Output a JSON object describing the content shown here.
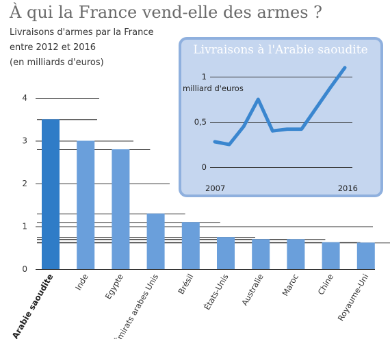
{
  "title": "À qui la France vend-elle des armes ?",
  "subtitle_lines": [
    "Livraisons d'armes par la France",
    "entre 2012 et 2016",
    "(en milliards d'euros)"
  ],
  "colors": {
    "highlight_bar": "#2f7cc7",
    "bar": "#6a9fdb",
    "inset_bg": "#c5d6ef",
    "inset_border": "#8fb0de",
    "inset_line": "#3a86cf"
  },
  "chart_data": [
    {
      "type": "bar",
      "categories": [
        "Arabie saoudite",
        "Inde",
        "Egypte",
        "Émirats arabes Unis",
        "Brésil",
        "États-Unis",
        "Australie",
        "Maroc",
        "Chine",
        "Royaume-Uni"
      ],
      "values": [
        3.5,
        3.0,
        2.8,
        1.3,
        1.1,
        0.75,
        0.7,
        0.7,
        0.63,
        0.62
      ],
      "highlight": "Arabie saoudite",
      "y_ticks": [
        0,
        1,
        2,
        3,
        4
      ],
      "ylim": [
        0,
        4
      ],
      "grid": true
    },
    {
      "type": "line",
      "title": "Livraisons à l'Arabie saoudite",
      "ylabel": "milliard d'euros",
      "x_labels": [
        "2007",
        "2016"
      ],
      "x": [
        2007,
        2008,
        2009,
        2010,
        2011,
        2012,
        2013,
        2014,
        2015,
        2016
      ],
      "values": [
        0.28,
        0.25,
        0.45,
        0.75,
        0.4,
        0.42,
        0.42,
        0.65,
        0.88,
        1.1
      ],
      "y_ticks": [
        "0",
        "0,5",
        "1"
      ],
      "y_tick_values": [
        0,
        0.5,
        1
      ],
      "ylim": [
        0,
        1
      ],
      "grid": true
    }
  ]
}
